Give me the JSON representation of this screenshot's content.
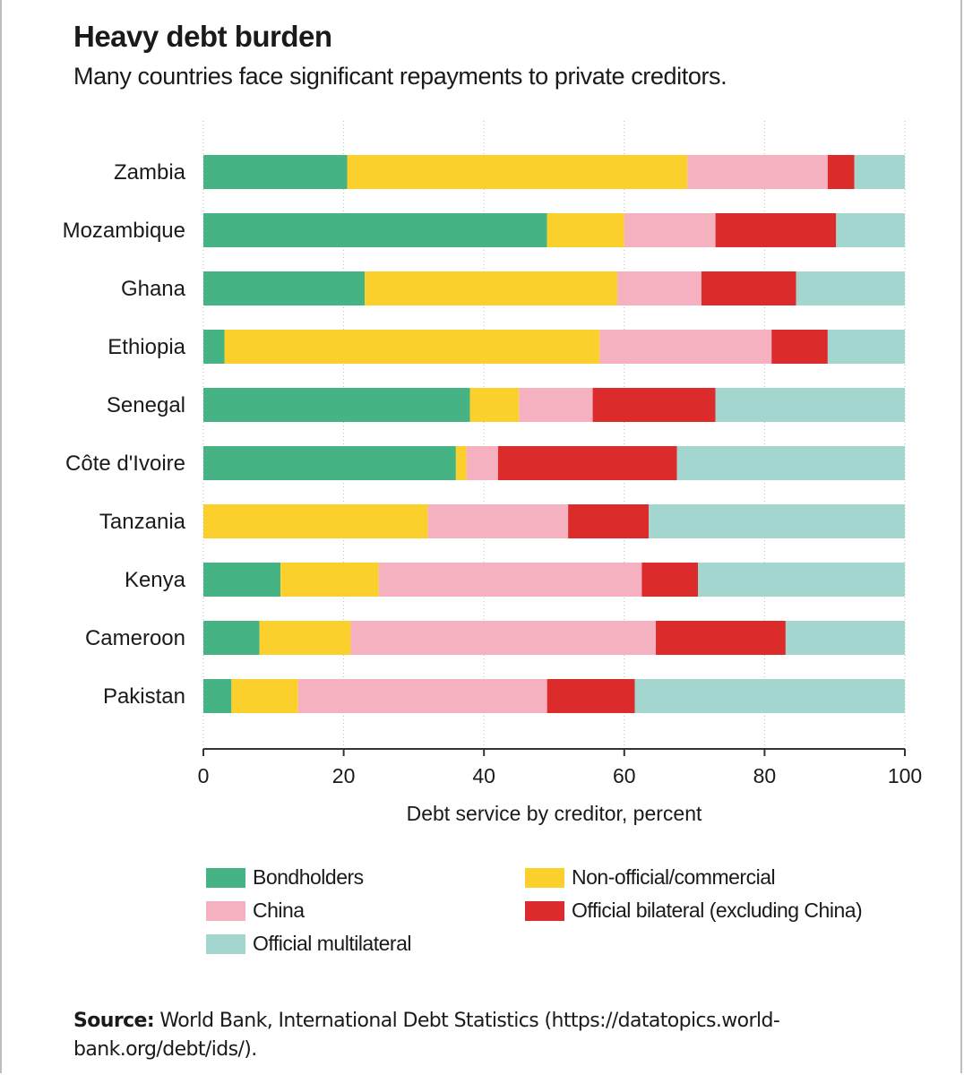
{
  "header": {
    "title": "Heavy debt burden",
    "subtitle": "Many countries face significant repayments to private creditors."
  },
  "source": {
    "label": "Source:",
    "text": " World Bank, International Debt Statistics (https://datatopics.world-bank.org/debt/ids/)."
  },
  "chart_data": {
    "type": "bar",
    "orientation": "horizontal",
    "stacked": true,
    "title": "Heavy debt burden",
    "subtitle": "Many countries face significant repayments to private creditors.",
    "xlabel": "Debt service by creditor, percent",
    "ylabel": "",
    "xlim": [
      0,
      100
    ],
    "xticks": [
      0,
      20,
      40,
      60,
      80,
      100
    ],
    "grid": true,
    "legend_placement": "bottom",
    "categories": [
      "Zambia",
      "Mozambique",
      "Ghana",
      "Ethiopia",
      "Senegal",
      "Côte d'Ivoire",
      "Tanzania",
      "Kenya",
      "Cameroon",
      "Pakistan"
    ],
    "series": [
      {
        "name": "Bondholders",
        "color": "#45b384",
        "values": [
          20.5,
          49,
          23,
          3,
          38,
          36,
          0,
          11,
          8,
          4
        ]
      },
      {
        "name": "Non-official/commercial",
        "color": "#fcd02c",
        "values": [
          48.5,
          11,
          36,
          53.5,
          7,
          1.5,
          32,
          14,
          13,
          9.5
        ]
      },
      {
        "name": "China",
        "color": "#f5b1bf",
        "values": [
          20,
          13,
          12,
          24.5,
          10.5,
          4.5,
          20,
          37.5,
          43.5,
          35.5
        ]
      },
      {
        "name": "Official bilateral (excluding China)",
        "color": "#db2b2a",
        "values": [
          3.8,
          17.2,
          13.5,
          8,
          17.5,
          25.5,
          11.5,
          8,
          18.5,
          12.5
        ]
      },
      {
        "name": "Official multilateral",
        "color": "#a3d6cf",
        "values": [
          7.2,
          9.8,
          15.5,
          11,
          27,
          32.5,
          36.5,
          29.5,
          17,
          38.5
        ]
      }
    ]
  }
}
